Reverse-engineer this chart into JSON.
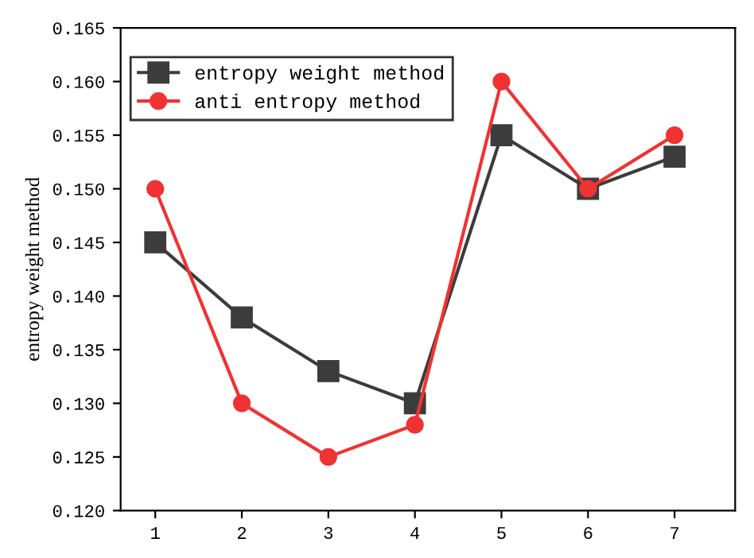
{
  "chart_data": {
    "type": "line",
    "ylabel": "entropy weight method",
    "x": [
      1,
      2,
      3,
      4,
      5,
      6,
      7
    ],
    "series": [
      {
        "name": "entropy weight method",
        "color": "#3c3c3c",
        "marker": "square",
        "values": [
          0.145,
          0.138,
          0.133,
          0.13,
          0.155,
          0.15,
          0.153
        ]
      },
      {
        "name": "anti entropy method",
        "color": "#f03232",
        "marker": "circle",
        "values": [
          0.15,
          0.13,
          0.125,
          0.128,
          0.16,
          0.15,
          0.155
        ]
      }
    ],
    "xlim": [
      0.6,
      7.7
    ],
    "xticks": [
      1,
      2,
      3,
      4,
      5,
      6,
      7
    ],
    "ylim": [
      0.12,
      0.165
    ],
    "yticks": [
      {
        "value": 0.12,
        "label": "0.120"
      },
      {
        "value": 0.125,
        "label": "0.125"
      },
      {
        "value": 0.13,
        "label": "0.130"
      },
      {
        "value": 0.135,
        "label": "0.135"
      },
      {
        "value": 0.14,
        "label": "0.140"
      },
      {
        "value": 0.145,
        "label": "0.145"
      },
      {
        "value": 0.15,
        "label": "0.150"
      },
      {
        "value": 0.155,
        "label": "0.155"
      },
      {
        "value": 0.16,
        "label": "0.160"
      },
      {
        "value": 0.165,
        "label": "0.165"
      }
    ],
    "legend": "top left",
    "grid": false,
    "line_style": "solid"
  }
}
